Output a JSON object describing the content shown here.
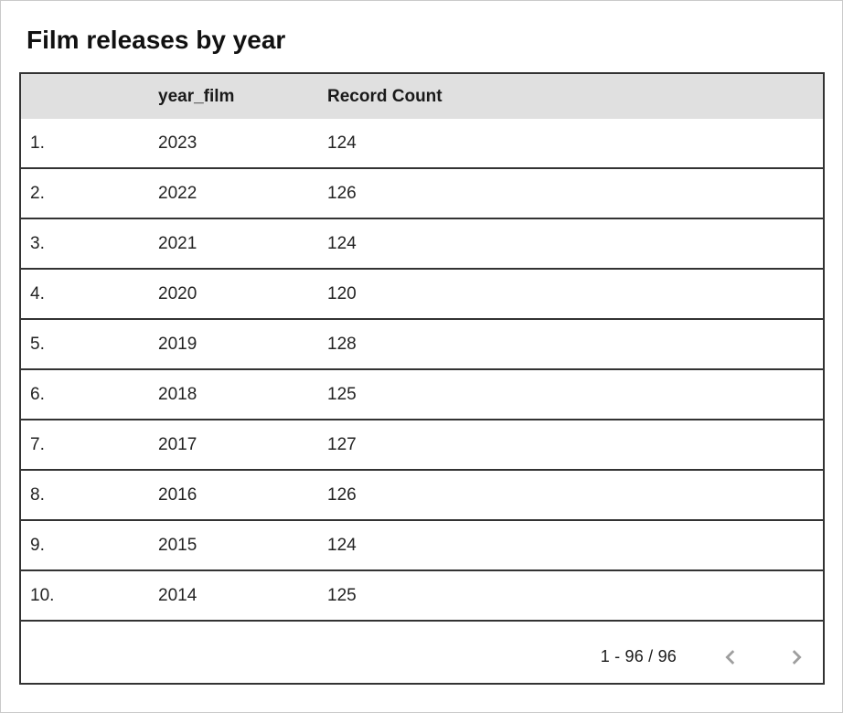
{
  "title": "Film releases by year",
  "table": {
    "columns": [
      "",
      "year_film",
      "Record Count"
    ],
    "rows": [
      {
        "index": "1.",
        "year_film": "2023",
        "record_count": "124"
      },
      {
        "index": "2.",
        "year_film": "2022",
        "record_count": "126"
      },
      {
        "index": "3.",
        "year_film": "2021",
        "record_count": "124"
      },
      {
        "index": "4.",
        "year_film": "2020",
        "record_count": "120"
      },
      {
        "index": "5.",
        "year_film": "2019",
        "record_count": "128"
      },
      {
        "index": "6.",
        "year_film": "2018",
        "record_count": "125"
      },
      {
        "index": "7.",
        "year_film": "2017",
        "record_count": "127"
      },
      {
        "index": "8.",
        "year_film": "2016",
        "record_count": "126"
      },
      {
        "index": "9.",
        "year_film": "2015",
        "record_count": "124"
      },
      {
        "index": "10.",
        "year_film": "2014",
        "record_count": "125"
      }
    ]
  },
  "pagination": {
    "range_label": "1 - 96 / 96",
    "prev_icon": "chevron-left",
    "next_icon": "chevron-right"
  },
  "colors": {
    "header_background": "#e0e0e0",
    "table_border": "#333333",
    "card_border": "#c9c9c9",
    "chevron": "#9e9e9e",
    "text": "#1f1f1f"
  },
  "chart_data": {
    "type": "table",
    "title": "Film releases by year",
    "columns": [
      "year_film",
      "Record Count"
    ],
    "x": [
      2023,
      2022,
      2021,
      2020,
      2019,
      2018,
      2017,
      2016,
      2015,
      2014
    ],
    "values": [
      124,
      126,
      124,
      120,
      128,
      125,
      127,
      126,
      124,
      125
    ],
    "visible_range": "1 - 96",
    "total_rows": 96
  }
}
